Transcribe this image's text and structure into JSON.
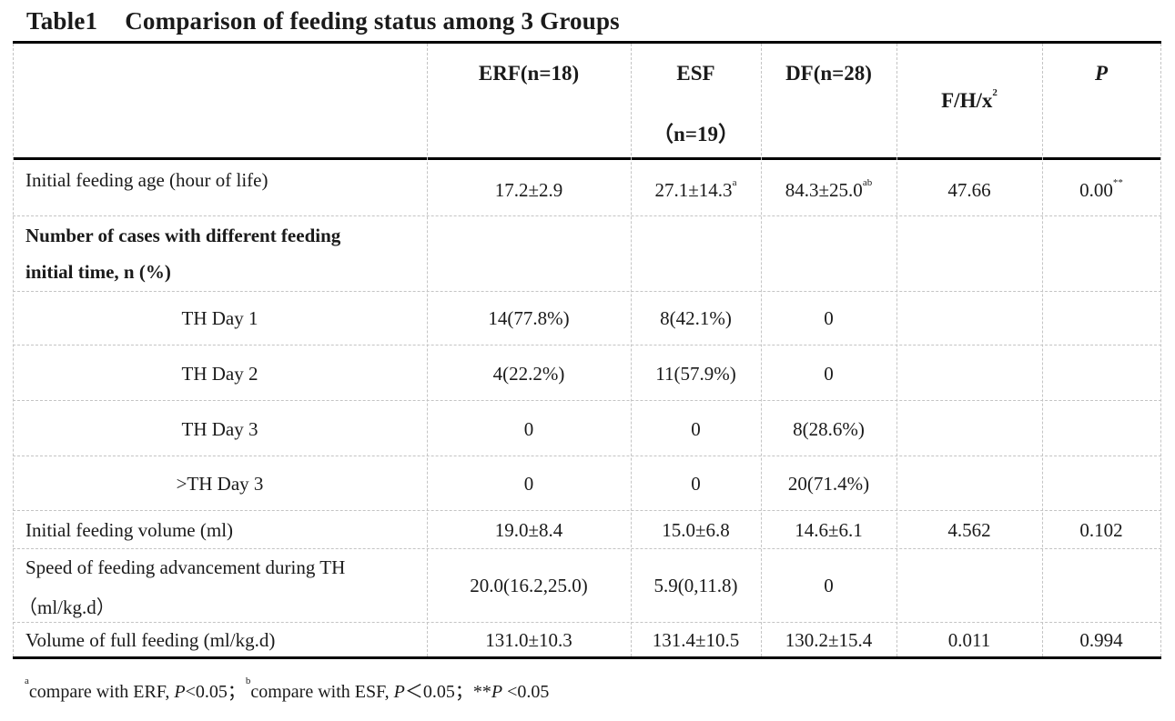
{
  "title": {
    "label": "Table1",
    "text": "Comparison of feeding status among 3 Groups"
  },
  "header": {
    "erf": "ERF(n=18)",
    "esf_line1": "ESF",
    "esf_line2": "（n=19）",
    "df": "DF(n=28)",
    "stat_base": "F/H/x",
    "stat_sup": "2",
    "p": "P"
  },
  "rows": [
    {
      "label": "Initial feeding age (hour of life)",
      "erf": "17.2±2.9",
      "esf": "27.1±14.3",
      "esf_sup": "a",
      "df": "84.3±25.0",
      "df_sup": "ab",
      "stat": "47.66",
      "p": "0.00",
      "p_sup": "**"
    },
    {
      "label_line1": "Number of cases with different feeding",
      "label_line2": "initial time, n (%)"
    },
    {
      "label": "TH Day 1",
      "erf": "14(77.8%)",
      "esf": "8(42.1%)",
      "df": "0"
    },
    {
      "label": "TH Day 2",
      "erf": "4(22.2%)",
      "esf": "11(57.9%)",
      "df": "0"
    },
    {
      "label": "TH Day 3",
      "erf": "0",
      "esf": "0",
      "df": "8(28.6%)"
    },
    {
      "label": ">TH Day 3",
      "erf": "0",
      "esf": "0",
      "df": "20(71.4%)"
    },
    {
      "label": "Initial feeding volume (ml)",
      "erf": "19.0±8.4",
      "esf": "15.0±6.8",
      "df": "14.6±6.1",
      "stat": "4.562",
      "p": "0.102"
    },
    {
      "label_line1": "Speed of feeding advancement during TH",
      "label_line2": "（ml/kg.d）",
      "erf": "20.0(16.2,25.0)",
      "esf": "5.9(0,11.8)",
      "df": "0"
    },
    {
      "label": "Volume of full feeding (ml/kg.d)",
      "erf": "131.0±10.3",
      "esf": "131.4±10.5",
      "df": "130.2±15.4",
      "stat": "0.011",
      "p": "0.994"
    }
  ],
  "footnote": {
    "a_sup": "a",
    "a_text": "compare with ERF, ",
    "a_p": "P",
    "a_val": "<0.05；",
    "b_sup": "b",
    "b_text": "compare with ESF, ",
    "b_p": "P",
    "b_val": "＜0.05；",
    "c_text": "**",
    "c_p": "P",
    "c_val": " <0.05"
  }
}
